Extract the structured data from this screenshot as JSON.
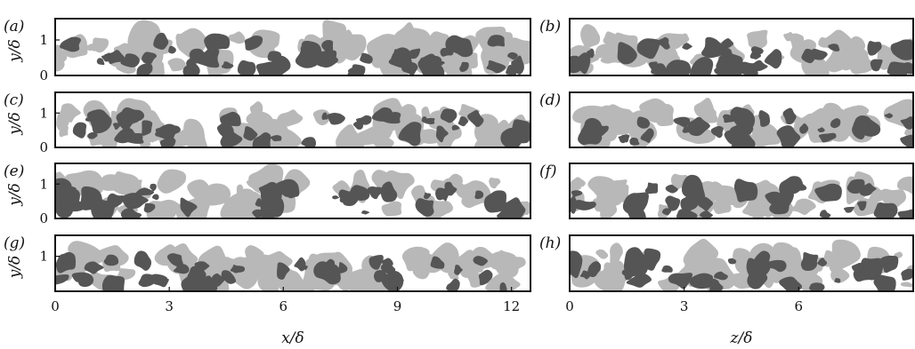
{
  "figure": {
    "panels": [
      {
        "id": "a",
        "label": "(a)",
        "plane": "x-y",
        "yticks": [
          "0",
          "1"
        ],
        "show_xticks": false
      },
      {
        "id": "b",
        "label": "(b)",
        "plane": "z-y",
        "yticks": [],
        "show_xticks": false
      },
      {
        "id": "c",
        "label": "(c)",
        "plane": "x-y",
        "yticks": [
          "0",
          "1"
        ],
        "show_xticks": false
      },
      {
        "id": "d",
        "label": "(d)",
        "plane": "z-y",
        "yticks": [],
        "show_xticks": false
      },
      {
        "id": "e",
        "label": "(e)",
        "plane": "x-y",
        "yticks": [
          "0",
          "1"
        ],
        "show_xticks": false
      },
      {
        "id": "f",
        "label": "(f)",
        "plane": "z-y",
        "yticks": [],
        "show_xticks": false
      },
      {
        "id": "g",
        "label": "(g)",
        "plane": "x-y",
        "yticks": [
          "1"
        ],
        "show_xticks": true
      },
      {
        "id": "h",
        "label": "(h)",
        "plane": "z-y",
        "yticks": [],
        "show_xticks": true
      }
    ],
    "ylabel": "y/δ",
    "left_xlabel": "x/δ",
    "right_xlabel": "z/δ",
    "left_xticks": [
      "0",
      "3",
      "6",
      "9",
      "12"
    ],
    "right_xticks": [
      "0",
      "3",
      "6"
    ],
    "colors": {
      "light": "#b8b8b8",
      "dark": "#555555",
      "frame": "#111111"
    }
  }
}
